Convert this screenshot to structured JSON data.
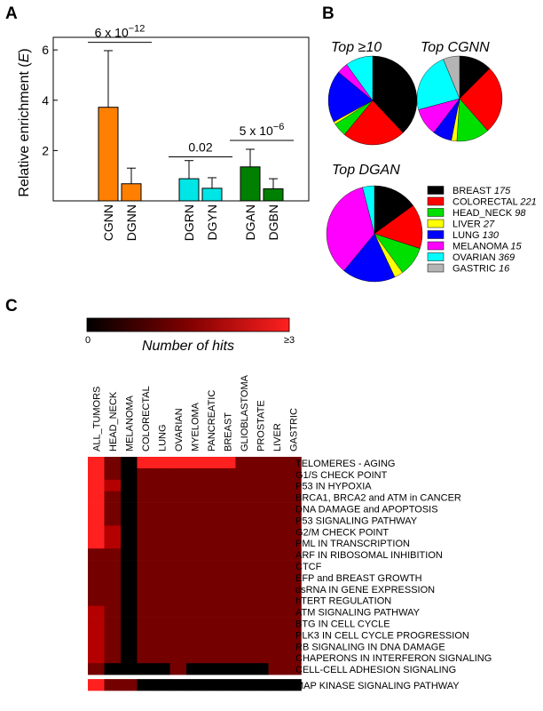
{
  "panels": {
    "a": "A",
    "b": "B",
    "c": "C"
  },
  "chart_data": [
    {
      "type": "bar",
      "ylabel_main": "Relative enrichment (",
      "ylabel_var": "E",
      "ylabel_end": ")",
      "ylim": [
        0,
        6.5
      ],
      "yticks": [
        2,
        4,
        6
      ],
      "categories": [
        "CGNN",
        "DGNN",
        "DGRN",
        "DGYN",
        "DGAN",
        "DGBN"
      ],
      "values": [
        3.72,
        0.68,
        0.88,
        0.5,
        1.35,
        0.48
      ],
      "error_upper": [
        5.97,
        1.3,
        1.6,
        0.92,
        2.05,
        0.88
      ],
      "colors": [
        "#ff8000",
        "#ff8000",
        "#00e5e5",
        "#00e5e5",
        "#008000",
        "#008000"
      ],
      "comparisons": [
        {
          "pair": [
            0,
            1
          ],
          "level": 6.3,
          "mantissa": "6 x 10",
          "exponent": "−12"
        },
        {
          "pair": [
            2,
            3
          ],
          "level": 1.75,
          "mantissa": "0.02",
          "exponent": ""
        },
        {
          "pair": [
            4,
            5
          ],
          "level": 2.4,
          "mantissa": "5 x 10",
          "exponent": "−6"
        }
      ]
    },
    {
      "type": "pie",
      "pies": [
        {
          "title": "Top ≥10",
          "values": [
            38,
            23,
            5,
            1,
            19,
            4,
            10
          ]
        },
        {
          "title": "Top CGNN",
          "values": [
            12,
            25,
            12,
            2,
            7,
            10,
            22,
            6
          ]
        },
        {
          "title": "Top DGAN",
          "values": [
            15,
            15,
            10,
            3,
            18,
            35,
            4
          ]
        }
      ],
      "legend": [
        {
          "name": "BREAST",
          "count": "175",
          "color": "#000000"
        },
        {
          "name": "COLORECTAL",
          "count": "221",
          "color": "#ff0000"
        },
        {
          "name": "HEAD_NECK",
          "count": "98",
          "color": "#00e000"
        },
        {
          "name": "LIVER",
          "count": "27",
          "color": "#ffff00"
        },
        {
          "name": "LUNG",
          "count": "130",
          "color": "#0000ff"
        },
        {
          "name": "MELANOMA",
          "count": "15",
          "color": "#ff00ff"
        },
        {
          "name": "OVARIAN",
          "count": "369",
          "color": "#00ffff"
        },
        {
          "name": "GASTRIC",
          "count": "16",
          "color": "#b4b4b4"
        }
      ]
    },
    {
      "type": "heatmap",
      "colorbar": {
        "min_label": "0",
        "max_label": "≥3",
        "title": "Number of hits"
      },
      "columns": [
        "ALL_TUMORS",
        "HEAD_NECK",
        "MELANOMA",
        "COLORECTAL",
        "LUNG",
        "OVARIAN",
        "MYELOMA",
        "PANCREATIC",
        "BREAST",
        "GLIOBLASTOMA",
        "PROSTATE",
        "LIVER",
        "GASTRIC"
      ],
      "rows": [
        "TELOMERES - AGING",
        "G1/S CHECK POINT",
        "P53 IN HYPOXIA",
        "BRCA1, BRCA2 and ATM in CANCER",
        "DNA DAMAGE and APOPTOSIS",
        "P53 SIGNALING PATHWAY",
        "G2/M CHECK POINT",
        "PML IN TRANSCRIPTION",
        "ARF IN RIBOSOMAL INHIBITION",
        "CTCF",
        "EFP and BREAST GROWTH",
        "dsRNA IN GENE EXPRESSION",
        "hTERT REGULATION",
        "ATM SIGNALING PATHWAY",
        "BTG IN CELL CYCLE",
        "PLK3 IN CELL CYCLE PROGRESSION",
        "RB SIGNALING IN DNA DAMAGE",
        "CHAPERONS IN INTERFERON SIGNALING",
        "CELL-CELL ADHESION SIGNALING"
      ],
      "extra_row": "MAP KINASE SIGNALING PATHWAY",
      "values": [
        [
          3,
          1,
          0,
          3,
          3,
          3,
          3,
          3,
          3,
          1,
          1,
          1,
          1
        ],
        [
          3,
          1,
          0,
          1,
          1,
          1,
          1,
          1,
          1,
          1,
          1,
          1,
          1
        ],
        [
          3,
          2,
          0,
          1,
          1,
          1,
          1,
          1,
          1,
          1,
          1,
          1,
          1
        ],
        [
          3,
          1,
          0,
          1,
          1,
          1,
          1,
          1,
          1,
          1,
          1,
          1,
          1
        ],
        [
          3,
          1,
          0,
          1,
          1,
          1,
          1,
          1,
          1,
          1,
          1,
          1,
          1
        ],
        [
          3,
          1,
          0,
          1,
          1,
          1,
          1,
          1,
          1,
          1,
          1,
          1,
          1
        ],
        [
          3,
          2,
          0,
          1,
          1,
          1,
          1,
          1,
          1,
          1,
          1,
          1,
          1
        ],
        [
          3,
          2,
          0,
          1,
          1,
          1,
          1,
          1,
          1,
          1,
          1,
          1,
          1
        ],
        [
          1,
          1,
          0,
          1,
          1,
          1,
          1,
          1,
          1,
          1,
          1,
          1,
          1
        ],
        [
          1,
          1,
          0,
          1,
          1,
          1,
          1,
          1,
          1,
          1,
          1,
          1,
          1
        ],
        [
          1,
          1,
          0,
          1,
          1,
          1,
          1,
          1,
          1,
          1,
          1,
          1,
          1
        ],
        [
          1,
          1,
          0,
          1,
          1,
          1,
          1,
          1,
          1,
          1,
          1,
          1,
          1
        ],
        [
          1,
          1,
          0,
          1,
          1,
          1,
          1,
          1,
          1,
          1,
          1,
          1,
          1
        ],
        [
          2,
          1,
          0,
          1,
          1,
          1,
          1,
          1,
          1,
          1,
          1,
          1,
          1
        ],
        [
          2,
          1,
          0,
          1,
          1,
          1,
          1,
          1,
          1,
          1,
          1,
          1,
          1
        ],
        [
          2,
          1,
          0,
          1,
          1,
          1,
          1,
          1,
          1,
          1,
          1,
          1,
          1
        ],
        [
          2,
          1,
          0,
          1,
          1,
          1,
          1,
          1,
          1,
          1,
          1,
          1,
          1
        ],
        [
          2,
          1,
          0,
          1,
          1,
          1,
          1,
          1,
          1,
          1,
          1,
          1,
          1
        ],
        [
          1,
          0,
          0,
          0,
          0,
          1,
          0,
          0,
          0,
          0,
          0,
          1,
          1
        ]
      ],
      "extra_values": [
        3,
        1,
        1,
        0,
        0,
        0,
        0,
        0,
        0,
        0,
        0,
        0,
        0
      ]
    }
  ]
}
